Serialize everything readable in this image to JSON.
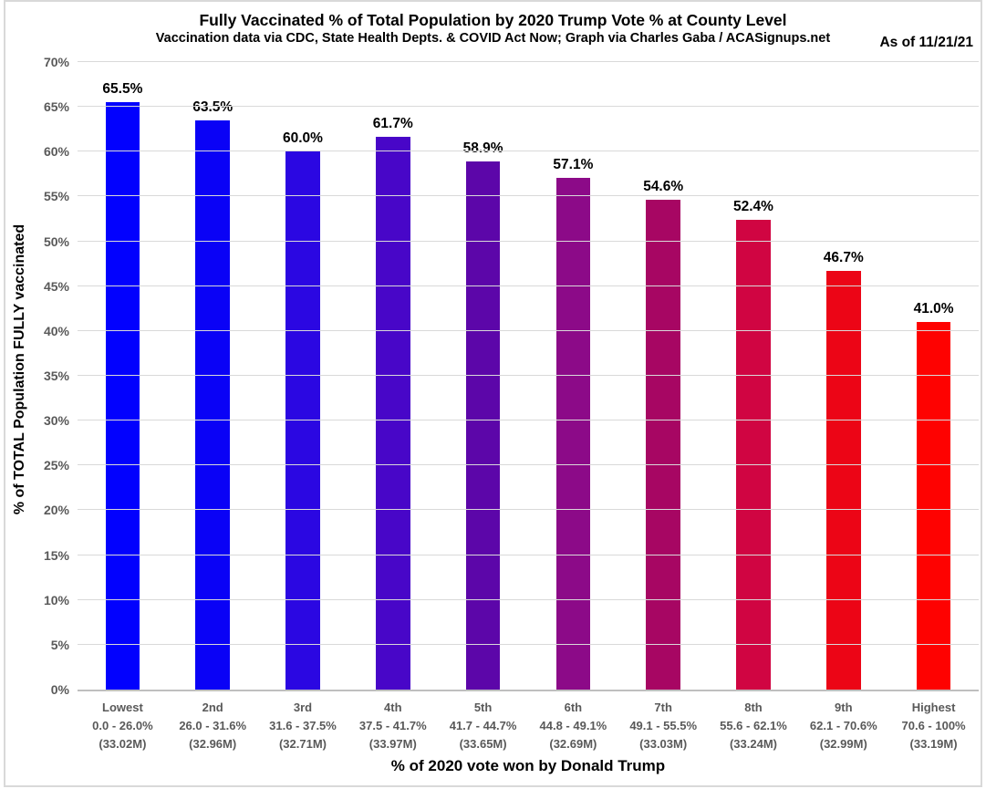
{
  "header": {
    "title": "Fully Vaccinated % of Total Population by 2020 Trump Vote % at County Level",
    "subtitle": "Vaccination data via CDC, State Health Depts. & COVID Act Now; Graph via Charles Gaba / ACASignups.net",
    "as_of": "As of 11/21/21"
  },
  "chart_data": {
    "type": "bar",
    "title": "Fully Vaccinated % of Total Population by 2020 Trump Vote % at County Level",
    "xlabel": "% of 2020 vote won by Donald Trump",
    "ylabel": "% of TOTAL Population FULLY vaccinated",
    "ylim": [
      0,
      70
    ],
    "ytick_step": 5,
    "ytick_suffix": "%",
    "grid": "horizontal",
    "legend": "none",
    "categories": [
      {
        "label": "Lowest",
        "range": "0.0 - 26.0%",
        "population": "(33.02M)"
      },
      {
        "label": "2nd",
        "range": "26.0 - 31.6%",
        "population": "(32.96M)"
      },
      {
        "label": "3rd",
        "range": "31.6 - 37.5%",
        "population": "(32.71M)"
      },
      {
        "label": "4th",
        "range": "37.5 - 41.7%",
        "population": "(33.97M)"
      },
      {
        "label": "5th",
        "range": "41.7 - 44.7%",
        "population": "(33.65M)"
      },
      {
        "label": "6th",
        "range": "44.8 - 49.1%",
        "population": "(32.69M)"
      },
      {
        "label": "7th",
        "range": "49.1 - 55.5%",
        "population": "(33.03M)"
      },
      {
        "label": "8th",
        "range": "55.6 - 62.1%",
        "population": "(33.24M)"
      },
      {
        "label": "9th",
        "range": "62.1 - 70.6%",
        "population": "(32.99M)"
      },
      {
        "label": "Highest",
        "range": "70.6 - 100%",
        "population": "(33.19M)"
      }
    ],
    "values": [
      65.5,
      63.5,
      60.0,
      61.7,
      58.9,
      57.1,
      54.6,
      52.4,
      46.7,
      41.0
    ],
    "value_labels": [
      "65.5%",
      "63.5%",
      "60.0%",
      "61.7%",
      "58.9%",
      "57.1%",
      "54.6%",
      "52.4%",
      "46.7%",
      "41.0%"
    ],
    "bar_colors": [
      "#0201FE",
      "#0A02F6",
      "#2B07E2",
      "#4806C8",
      "#5C06A9",
      "#8C0A88",
      "#A70663",
      "#D00542",
      "#EC0516",
      "#FE0201"
    ]
  },
  "colors": {
    "background": "#FFFFFF",
    "frame_border": "#D9D9D9",
    "gridline": "#D9D9D9",
    "axis_line": "#BFBFBF",
    "tick_label": "#595959",
    "text": "#000000"
  }
}
